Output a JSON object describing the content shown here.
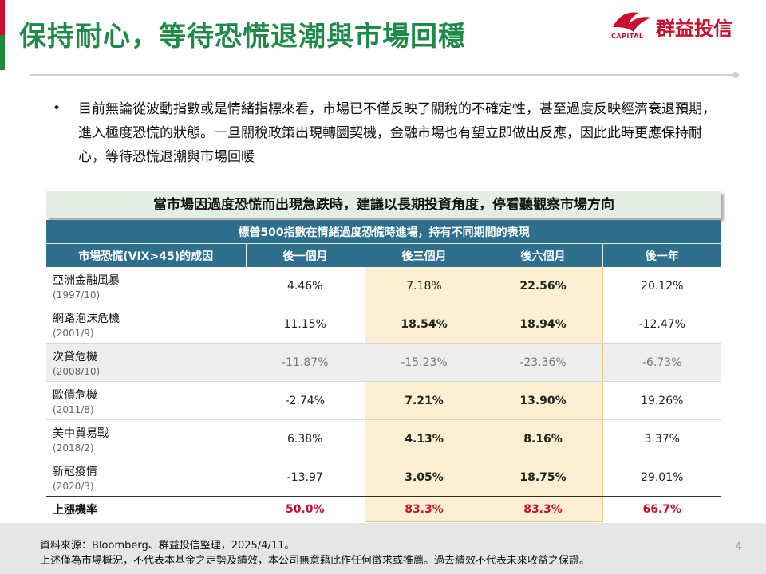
{
  "title": "保持耐心，等待恐慌退潮與市場回穩",
  "logo": {
    "brand": "群益投信",
    "sub": "CAPITAL"
  },
  "bullet_text": "目前無論從波動指數或是情緒指標來看，市場已不僅反映了關稅的不確定性，甚至過度反映經濟衰退預期，進入極度恐慌的狀態。一旦關稅政策出現轉圜契機，金融市場也有望立即做出反應，因此此時更應保持耐心，等待恐慌退潮與市場回暖",
  "banner": "當市場因過度恐慌而出現急跌時，建議以長期投資角度，停看聽觀察市場方向",
  "table": {
    "caption": "標普500指數在情緒過度恐慌時進場，持有不同期間的表現",
    "headers": [
      "市場恐慌(VIX>45)的成因",
      "後一個月",
      "後三個月",
      "後六個月",
      "後一年"
    ],
    "rows": [
      {
        "name": "亞洲金融風暴",
        "date": "(1997/10)",
        "m1": "4.46%",
        "m3": "7.18%",
        "m6": "22.56%",
        "y1": "20.12%"
      },
      {
        "name": "網路泡沫危機",
        "date": "(2001/9)",
        "m1": "11.15%",
        "m3": "18.54%",
        "m6": "18.94%",
        "y1": "-12.47%"
      },
      {
        "name": "次貸危機",
        "date": "(2008/10)",
        "m1": "-11.87%",
        "m3": "-15.23%",
        "m6": "-23.36%",
        "y1": "-6.73%"
      },
      {
        "name": "歐債危機",
        "date": "(2011/8)",
        "m1": "-2.74%",
        "m3": "7.21%",
        "m6": "13.90%",
        "y1": "19.26%"
      },
      {
        "name": "美中貿易戰",
        "date": "(2018/2)",
        "m1": "6.38%",
        "m3": "4.13%",
        "m6": "8.16%",
        "y1": "3.37%"
      },
      {
        "name": "新冠疫情",
        "date": "(2020/3)",
        "m1": "-13.97",
        "m3": "3.05%",
        "m6": "18.75%",
        "y1": "29.01%"
      }
    ],
    "summary": {
      "label": "上漲機率",
      "m1": "50.0%",
      "m3": "83.3%",
      "m6": "83.3%",
      "y1": "66.7%"
    }
  },
  "footer": {
    "source": "資料來源：Bloomberg、群益投信整理，2025/4/11。",
    "disclaimer": "上述僅為市場概況，不代表本基金之走勢及績效，本公司無意藉此作任何徵求或推薦。過去績效不代表未來收益之保證。",
    "page": "4"
  },
  "colors": {
    "brand_green": "#1e8a48",
    "brand_red": "#c8102e",
    "table_header": "#2e6f8e",
    "highlight": "#fdf0d2"
  }
}
